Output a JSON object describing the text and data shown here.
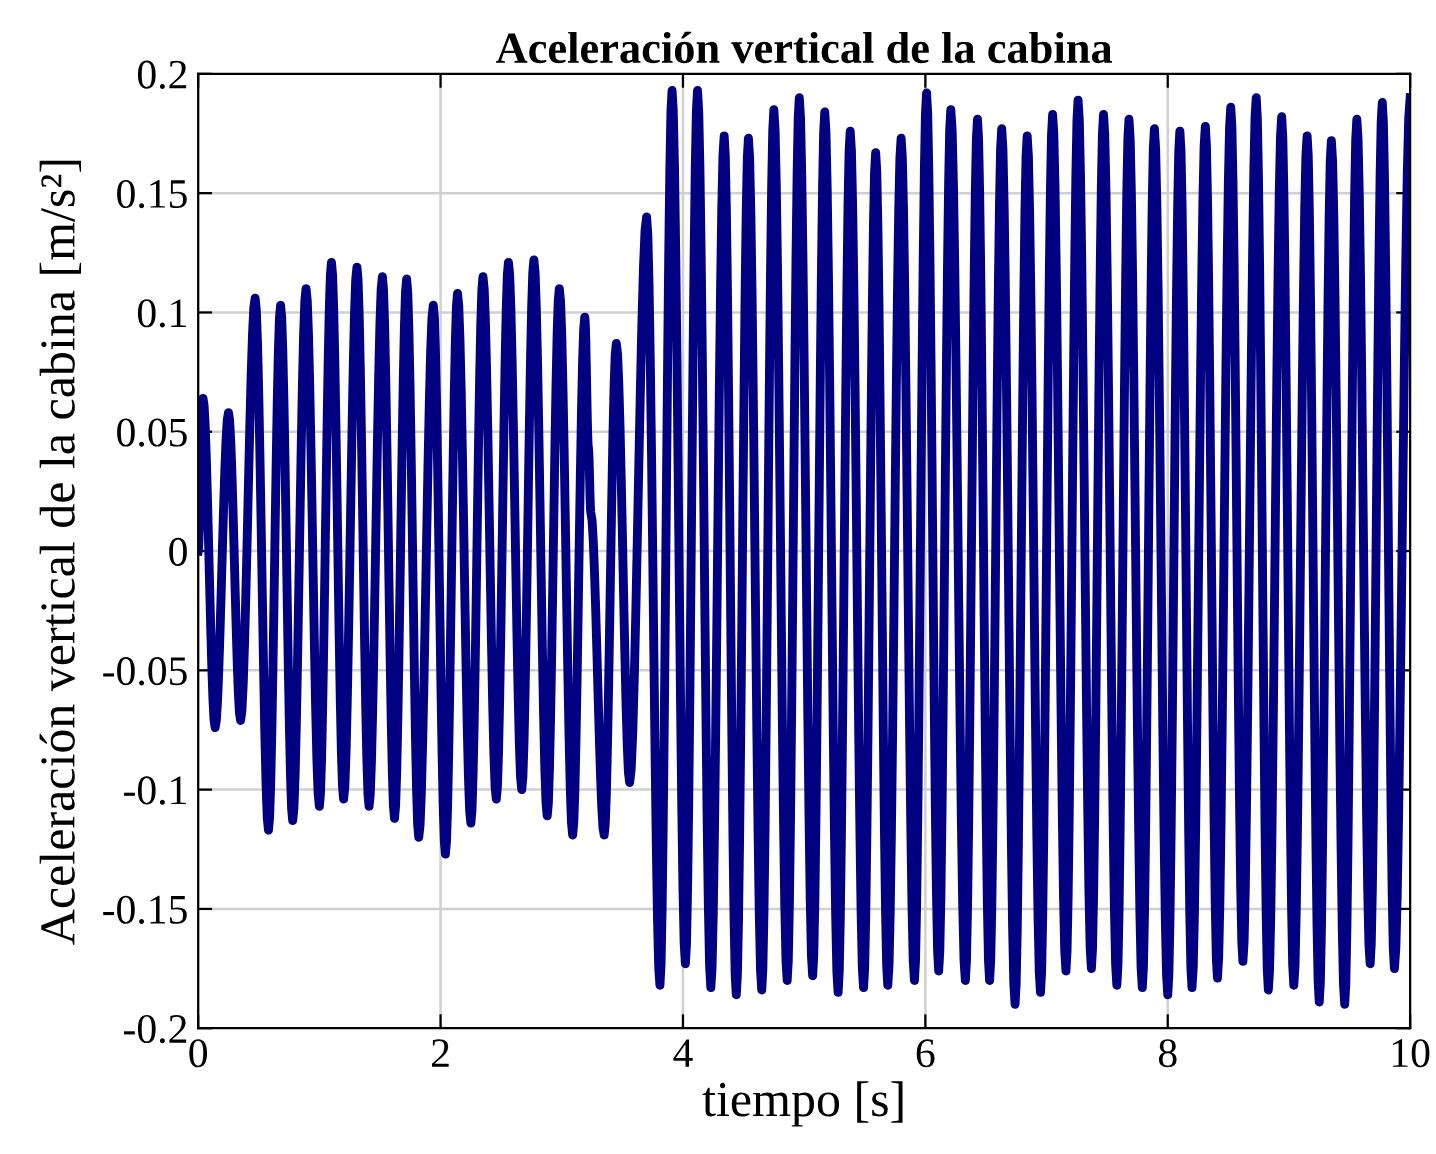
{
  "chart_data": {
    "type": "line",
    "title": "Aceleración vertical de la cabina",
    "xlabel": "tiempo [s]",
    "ylabel": "Aceleración vertical de la cabina [m/s²]",
    "xlim": [
      0,
      10
    ],
    "ylim": [
      -0.2,
      0.2
    ],
    "xticks": [
      0,
      2,
      4,
      6,
      8,
      10
    ],
    "yticks": [
      -0.2,
      -0.15,
      -0.1,
      -0.05,
      0,
      0.05,
      0.1,
      0.15,
      0.2
    ],
    "grid": true,
    "marker": "none",
    "line_style": "solid",
    "legend": false,
    "series": [
      {
        "color": "#000080",
        "x": [
          0,
          0.04,
          0.14,
          0.25,
          0.35,
          0.47,
          0.58,
          0.68,
          0.78,
          0.89,
          1.0,
          1.1,
          1.2,
          1.31,
          1.41,
          1.52,
          1.62,
          1.72,
          1.82,
          1.94,
          2.04,
          2.14,
          2.25,
          2.35,
          2.46,
          2.56,
          2.67,
          2.77,
          2.88,
          2.98,
          3.09,
          3.19,
          3.22,
          3.24,
          3.35,
          3.45,
          3.56,
          3.7,
          3.81,
          3.91,
          4.02,
          4.12,
          4.23,
          4.34,
          4.44,
          4.54,
          4.65,
          4.75,
          4.86,
          4.96,
          5.07,
          5.17,
          5.28,
          5.38,
          5.49,
          5.59,
          5.69,
          5.8,
          5.91,
          6.01,
          6.11,
          6.21,
          6.33,
          6.43,
          6.53,
          6.63,
          6.74,
          6.84,
          6.95,
          7.05,
          7.16,
          7.26,
          7.37,
          7.47,
          7.58,
          7.68,
          7.79,
          7.89,
          8.0,
          8.1,
          8.2,
          8.31,
          8.41,
          8.52,
          8.62,
          8.73,
          8.83,
          8.94,
          9.04,
          9.15,
          9.25,
          9.35,
          9.46,
          9.56,
          9.67,
          9.77,
          9.87,
          10
        ],
        "values": [
          0,
          0.064,
          -0.074,
          0.058,
          -0.071,
          0.106,
          -0.117,
          0.103,
          -0.113,
          0.11,
          -0.107,
          0.121,
          -0.104,
          0.119,
          -0.107,
          0.115,
          -0.112,
          0.114,
          -0.12,
          0.103,
          -0.127,
          0.108,
          -0.114,
          0.115,
          -0.104,
          0.121,
          -0.1,
          0.122,
          -0.111,
          0.11,
          -0.119,
          0.098,
          0.043,
          0.016,
          -0.119,
          0.087,
          -0.097,
          0.14,
          -0.182,
          0.193,
          -0.173,
          0.193,
          -0.183,
          0.174,
          -0.186,
          0.173,
          -0.184,
          0.185,
          -0.18,
          0.19,
          -0.178,
          0.184,
          -0.185,
          0.176,
          -0.183,
          0.167,
          -0.182,
          0.173,
          -0.18,
          0.192,
          -0.176,
          0.185,
          -0.18,
          0.181,
          -0.18,
          0.177,
          -0.19,
          0.174,
          -0.185,
          0.183,
          -0.176,
          0.189,
          -0.175,
          0.183,
          -0.182,
          0.181,
          -0.183,
          0.177,
          -0.186,
          0.176,
          -0.183,
          0.178,
          -0.179,
          0.186,
          -0.172,
          0.19,
          -0.184,
          0.182,
          -0.182,
          0.174,
          -0.189,
          0.172,
          -0.19,
          0.181,
          -0.173,
          0.188,
          -0.175,
          0.19
        ]
      }
    ]
  }
}
